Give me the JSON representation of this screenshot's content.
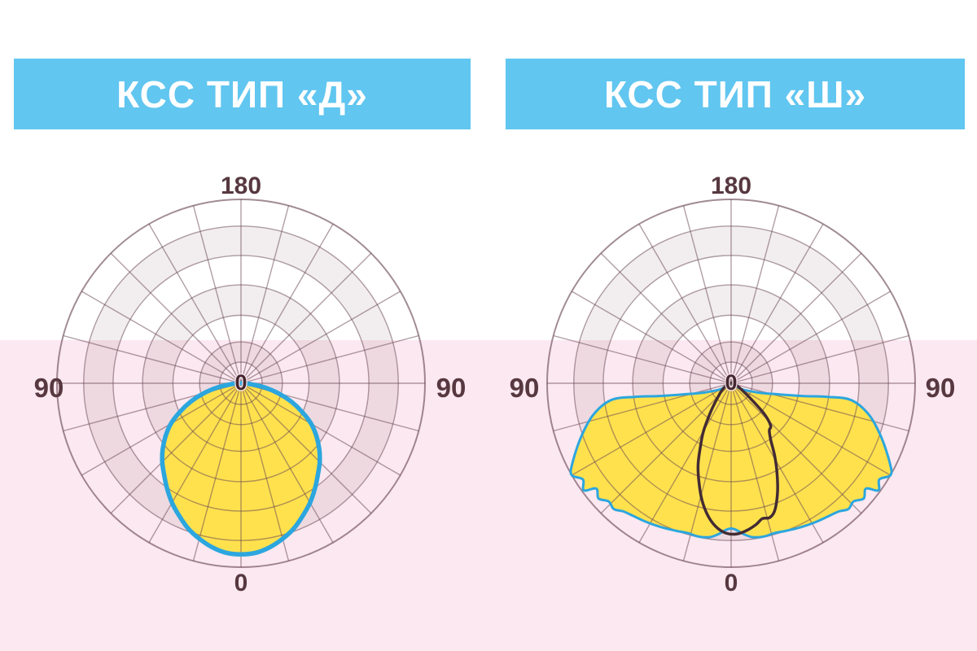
{
  "colors": {
    "header_bg": "#61C6F0",
    "header_text": "#FFFFFF",
    "pink_band_bg": "#FBE8F0",
    "grid_stroke": "rgba(104,70,82,0.52)",
    "outer_ring_stroke": "rgba(104,70,82,0.62)",
    "band_fill": "rgba(104,60,74,0.085)",
    "label_color": "#573840",
    "lobe_yellow": "#FFE14E",
    "lobe_blue_stroke": "#2CA6DE",
    "lobe_dark_stroke": "#432B33"
  },
  "chart_data": [
    {
      "type": "polar",
      "title": "КСС ТИП «Д»",
      "angle_labels": {
        "top": "180",
        "left": "90",
        "right": "90",
        "bottom": "0",
        "center": "0"
      },
      "angle_unit": "deg",
      "spoke_step_deg": 15,
      "ring_fractions": [
        0.115,
        0.225,
        0.37,
        0.535,
        0.695,
        0.855,
        1.0
      ],
      "shaded_bands": [
        [
          0.115,
          0.225
        ],
        [
          0.37,
          0.535
        ],
        [
          0.695,
          0.855
        ]
      ],
      "series": [
        {
          "name": "kss-d-lobe",
          "fill": "#FFE14E",
          "stroke": "#2CA6DE",
          "stroke_width": 5.5,
          "points_deg_r": [
            [
              -90,
              0.01
            ],
            [
              -85,
              0.05
            ],
            [
              -80,
              0.13
            ],
            [
              -75,
              0.21
            ],
            [
              -70,
              0.29
            ],
            [
              -65,
              0.365
            ],
            [
              -60,
              0.44
            ],
            [
              -55,
              0.5
            ],
            [
              -50,
              0.555
            ],
            [
              -45,
              0.605
            ],
            [
              -40,
              0.65
            ],
            [
              -35,
              0.7
            ],
            [
              -30,
              0.75
            ],
            [
              -25,
              0.795
            ],
            [
              -20,
              0.84
            ],
            [
              -15,
              0.875
            ],
            [
              -10,
              0.905
            ],
            [
              -5,
              0.925
            ],
            [
              0,
              0.93
            ],
            [
              5,
              0.925
            ],
            [
              10,
              0.905
            ],
            [
              15,
              0.875
            ],
            [
              20,
              0.84
            ],
            [
              25,
              0.795
            ],
            [
              30,
              0.75
            ],
            [
              35,
              0.7
            ],
            [
              40,
              0.65
            ],
            [
              45,
              0.605
            ],
            [
              50,
              0.555
            ],
            [
              55,
              0.5
            ],
            [
              60,
              0.44
            ],
            [
              65,
              0.365
            ],
            [
              70,
              0.29
            ],
            [
              75,
              0.21
            ],
            [
              80,
              0.13
            ],
            [
              85,
              0.05
            ],
            [
              90,
              0.01
            ]
          ]
        }
      ]
    },
    {
      "type": "polar",
      "title": "КСС ТИП «Ш»",
      "angle_labels": {
        "top": "180",
        "left": "90",
        "right": "90",
        "bottom": "0",
        "center": "0"
      },
      "angle_unit": "deg",
      "spoke_step_deg": 15,
      "ring_fractions": [
        0.115,
        0.225,
        0.37,
        0.535,
        0.695,
        0.855,
        1.0
      ],
      "shaded_bands": [
        [
          0.115,
          0.225
        ],
        [
          0.37,
          0.535
        ],
        [
          0.695,
          0.855
        ]
      ],
      "series": [
        {
          "name": "kss-sh-wide-lobe",
          "fill": "#FFE14E",
          "stroke": "#2CA6DE",
          "stroke_width": 3,
          "points_deg_r": [
            [
              -60,
              0.06
            ],
            [
              -66,
              0.1
            ],
            [
              -72,
              0.17
            ],
            [
              -77,
              0.27
            ],
            [
              -80,
              0.4
            ],
            [
              -82,
              0.53
            ],
            [
              -82,
              0.66
            ],
            [
              -77,
              0.77
            ],
            [
              -70,
              0.87
            ],
            [
              -63,
              0.97
            ],
            [
              -60,
              1.0
            ],
            [
              -57,
              0.96
            ],
            [
              -54,
              0.99
            ],
            [
              -52,
              0.93
            ],
            [
              -49,
              0.955
            ],
            [
              -46,
              0.925
            ],
            [
              -43,
              0.935
            ],
            [
              -40,
              0.91
            ],
            [
              -36,
              0.895
            ],
            [
              -32,
              0.885
            ],
            [
              -28,
              0.875
            ],
            [
              -24,
              0.865
            ],
            [
              -20,
              0.855
            ],
            [
              -16,
              0.848
            ],
            [
              -12,
              0.852
            ],
            [
              -8,
              0.845
            ],
            [
              -5,
              0.825
            ],
            [
              -2,
              0.798
            ],
            [
              0,
              0.79
            ],
            [
              2,
              0.798
            ],
            [
              5,
              0.825
            ],
            [
              8,
              0.845
            ],
            [
              12,
              0.852
            ],
            [
              16,
              0.848
            ],
            [
              20,
              0.855
            ],
            [
              24,
              0.865
            ],
            [
              28,
              0.875
            ],
            [
              32,
              0.885
            ],
            [
              36,
              0.895
            ],
            [
              40,
              0.91
            ],
            [
              43,
              0.935
            ],
            [
              46,
              0.925
            ],
            [
              49,
              0.955
            ],
            [
              52,
              0.93
            ],
            [
              54,
              0.99
            ],
            [
              57,
              0.96
            ],
            [
              60,
              1.0
            ],
            [
              63,
              0.97
            ],
            [
              70,
              0.87
            ],
            [
              77,
              0.77
            ],
            [
              82,
              0.66
            ],
            [
              82,
              0.53
            ],
            [
              80,
              0.4
            ],
            [
              77,
              0.27
            ],
            [
              72,
              0.17
            ],
            [
              66,
              0.1
            ],
            [
              60,
              0.06
            ]
          ]
        },
        {
          "name": "kss-sh-narrow-lobe",
          "fill": "none",
          "stroke": "#432B33",
          "stroke_width": 3.5,
          "points_deg_r": [
            [
              -90,
              0.01
            ],
            [
              -80,
              0.015
            ],
            [
              -70,
              0.025
            ],
            [
              -60,
              0.04
            ],
            [
              -52,
              0.065
            ],
            [
              -46,
              0.09
            ],
            [
              -40,
              0.135
            ],
            [
              -35,
              0.2
            ],
            [
              -30,
              0.3
            ],
            [
              -26,
              0.38
            ],
            [
              -22,
              0.48
            ],
            [
              -18,
              0.565
            ],
            [
              -14,
              0.655
            ],
            [
              -10,
              0.73
            ],
            [
              -6,
              0.785
            ],
            [
              -2,
              0.815
            ],
            [
              2,
              0.82
            ],
            [
              6,
              0.805
            ],
            [
              10,
              0.78
            ],
            [
              13,
              0.755
            ],
            [
              16,
              0.76
            ],
            [
              19,
              0.73
            ],
            [
              23,
              0.645
            ],
            [
              27,
              0.55
            ],
            [
              31,
              0.46
            ],
            [
              35,
              0.375
            ],
            [
              39,
              0.33
            ],
            [
              43,
              0.315
            ],
            [
              47,
              0.25
            ],
            [
              51,
              0.15
            ],
            [
              56,
              0.085
            ],
            [
              62,
              0.05
            ],
            [
              70,
              0.03
            ],
            [
              80,
              0.015
            ],
            [
              90,
              0.01
            ]
          ]
        }
      ]
    }
  ]
}
